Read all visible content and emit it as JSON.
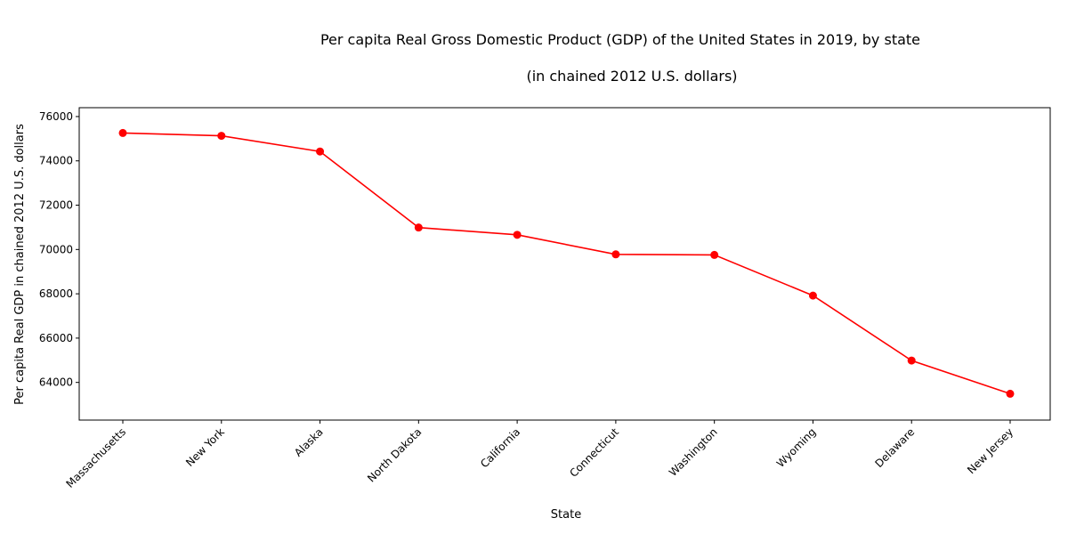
{
  "chart_data": {
    "type": "line",
    "title": "Per capita Real Gross Domestic Product (GDP) of the United States in 2019, by state",
    "subtitle": "(in chained 2012 U.S. dollars)",
    "xlabel": "State",
    "ylabel": "Per capita Real GDP in chained 2012 U.S. dollars",
    "categories": [
      "Massachusetts",
      "New York",
      "Alaska",
      "North Dakota",
      "California",
      "Connecticut",
      "Washington",
      "Wyoming",
      "Delaware",
      "New Jersey"
    ],
    "series": [
      {
        "values": [
          75258,
          75131,
          74422,
          70990,
          70662,
          69780,
          69756,
          67919,
          64987,
          63488
        ],
        "color": "#ff0000"
      }
    ],
    "ylim": [
      62300,
      76400
    ],
    "yticks": [
      64000,
      66000,
      68000,
      70000,
      72000,
      74000,
      76000
    ],
    "grid": false,
    "legend": "none"
  }
}
